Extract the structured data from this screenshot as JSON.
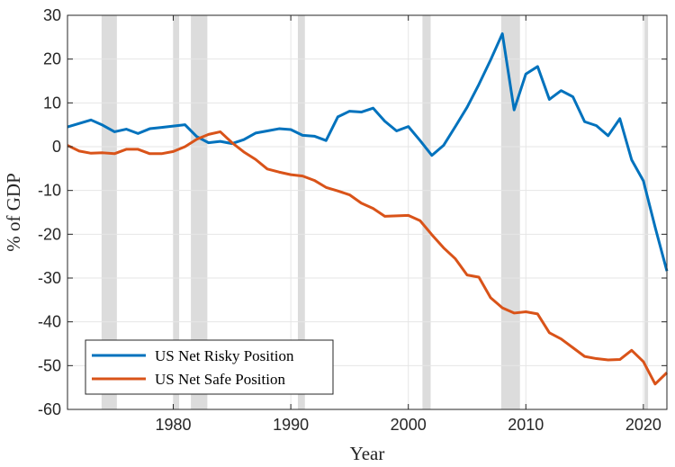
{
  "chart_data": {
    "type": "line",
    "xlabel": "Year",
    "ylabel": "% of GDP",
    "xlim": [
      1971,
      2022
    ],
    "ylim": [
      -60,
      30
    ],
    "xticks": [
      1980,
      1990,
      2000,
      2010,
      2020
    ],
    "yticks": [
      30,
      20,
      10,
      0,
      -10,
      -20,
      -30,
      -40,
      -50,
      -60
    ],
    "grid": true,
    "legend_position": "bottom-left",
    "recession_shading": [
      [
        1973.9,
        1975.2
      ],
      [
        1980.0,
        1980.5
      ],
      [
        1981.5,
        1982.9
      ],
      [
        1990.6,
        1991.2
      ],
      [
        2001.2,
        2001.9
      ],
      [
        2007.9,
        2009.5
      ],
      [
        2020.1,
        2020.4
      ]
    ],
    "series": [
      {
        "name": "US Net Risky Position",
        "color": "#0072BD",
        "x": [
          1971,
          1972,
          1973,
          1974,
          1975,
          1976,
          1977,
          1978,
          1979,
          1980,
          1981,
          1982,
          1983,
          1984,
          1985,
          1986,
          1987,
          1988,
          1989,
          1990,
          1991,
          1992,
          1993,
          1994,
          1995,
          1996,
          1997,
          1998,
          1999,
          2000,
          2001,
          2002,
          2003,
          2004,
          2005,
          2006,
          2007,
          2008,
          2009,
          2010,
          2011,
          2012,
          2013,
          2014,
          2015,
          2016,
          2017,
          2018,
          2019,
          2020,
          2021,
          2022
        ],
        "values": [
          4.5,
          5.3,
          6.1,
          4.9,
          3.4,
          4.0,
          3.0,
          4.1,
          4.4,
          4.7,
          5.0,
          2.3,
          0.9,
          1.2,
          0.7,
          1.6,
          3.1,
          3.6,
          4.1,
          3.9,
          2.6,
          2.4,
          1.4,
          6.8,
          8.1,
          7.9,
          8.8,
          5.8,
          3.6,
          4.6,
          1.4,
          -2.0,
          0.3,
          4.6,
          9.0,
          14.2,
          19.8,
          25.8,
          8.4,
          16.6,
          18.3,
          10.8,
          12.8,
          11.4,
          5.7,
          4.8,
          2.5,
          6.4,
          -3.0,
          -7.8,
          -18.4,
          -28.4
        ]
      },
      {
        "name": "US Net Safe Position",
        "color": "#D95319",
        "x": [
          1971,
          1972,
          1973,
          1974,
          1975,
          1976,
          1977,
          1978,
          1979,
          1980,
          1981,
          1982,
          1983,
          1984,
          1985,
          1986,
          1987,
          1988,
          1989,
          1990,
          1991,
          1992,
          1993,
          1994,
          1995,
          1996,
          1997,
          1998,
          1999,
          2000,
          2001,
          2002,
          2003,
          2004,
          2005,
          2006,
          2007,
          2008,
          2009,
          2010,
          2011,
          2012,
          2013,
          2014,
          2015,
          2016,
          2017,
          2018,
          2019,
          2020,
          2021,
          2022
        ],
        "values": [
          0.3,
          -1.0,
          -1.5,
          -1.4,
          -1.6,
          -0.6,
          -0.6,
          -1.6,
          -1.6,
          -1.1,
          0.0,
          1.7,
          2.8,
          3.4,
          0.9,
          -1.2,
          -2.9,
          -5.1,
          -5.8,
          -6.4,
          -6.7,
          -7.7,
          -9.3,
          -10.1,
          -11.0,
          -12.9,
          -14.1,
          -15.9,
          -15.8,
          -15.7,
          -16.9,
          -20.1,
          -23.1,
          -25.6,
          -29.3,
          -29.8,
          -34.5,
          -36.8,
          -38.0,
          -37.7,
          -38.2,
          -42.5,
          -43.9,
          -45.9,
          -47.9,
          -48.4,
          -48.7,
          -48.6,
          -46.5,
          -49.1,
          -54.2,
          -51.6
        ]
      }
    ]
  }
}
